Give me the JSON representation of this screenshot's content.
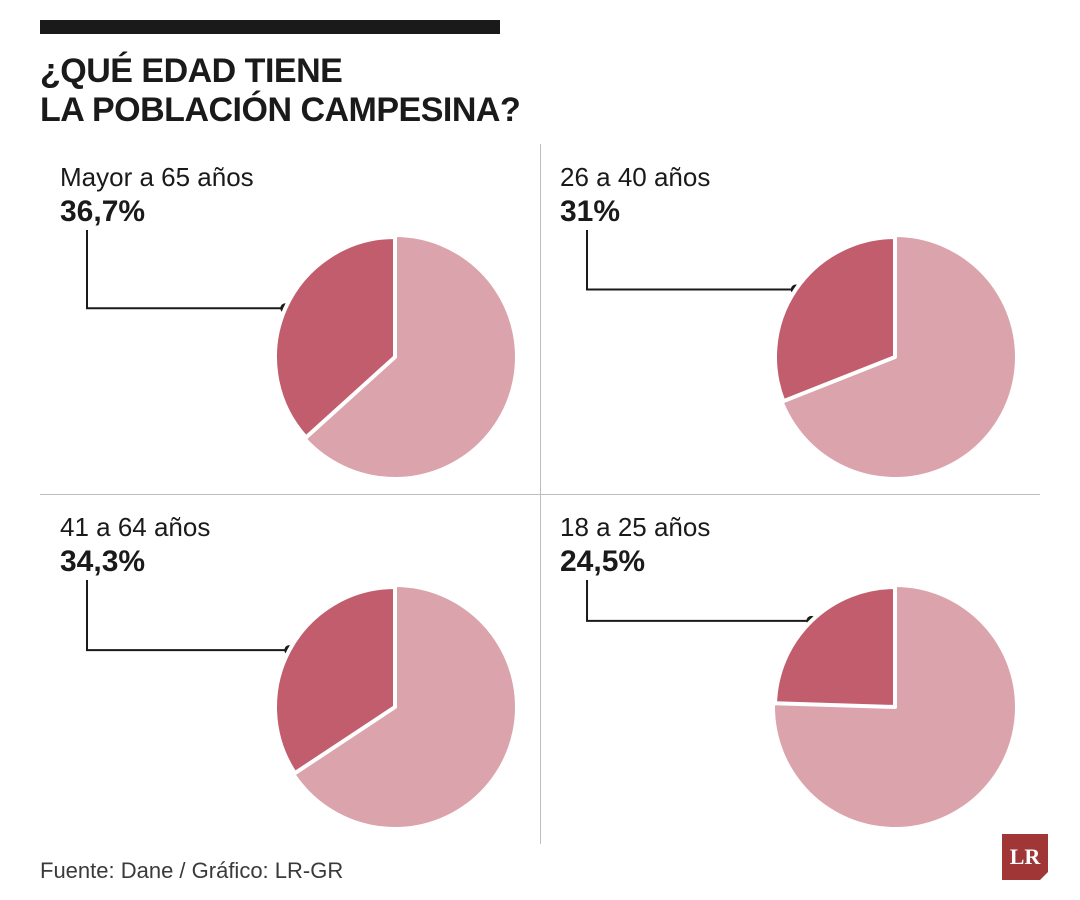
{
  "colors": {
    "text": "#1a1a1a",
    "divider": "#bdbdbd",
    "slice_dark": "#c25d6e",
    "slice_light": "#dba3ab",
    "slice_stroke": "#ffffff",
    "leader_stroke": "#1a1a1a",
    "logo_bg": "#a03636",
    "logo_text": "#ffffff",
    "background": "#ffffff"
  },
  "title_line1": "¿QUÉ EDAD TIENE",
  "title_line2": "LA POBLACIÓN CAMPESINA?",
  "title_fontsize": 34,
  "label_fontsize": 26,
  "value_fontsize": 30,
  "items": [
    {
      "label": "Mayor a 65 años",
      "value_text": "36,7%",
      "percent": 36.7
    },
    {
      "label": "26 a 40 años",
      "value_text": "31%",
      "percent": 31.0
    },
    {
      "label": "41 a 64 años",
      "value_text": "34,3%",
      "percent": 34.3
    },
    {
      "label": "18 a 25 años",
      "value_text": "24,5%",
      "percent": 24.5
    }
  ],
  "pie": {
    "radius": 120,
    "stroke_width": 4,
    "leader_dot_radius": 5
  },
  "source": "Fuente: Dane / Gráfico: LR-GR",
  "logo_text": "LR"
}
